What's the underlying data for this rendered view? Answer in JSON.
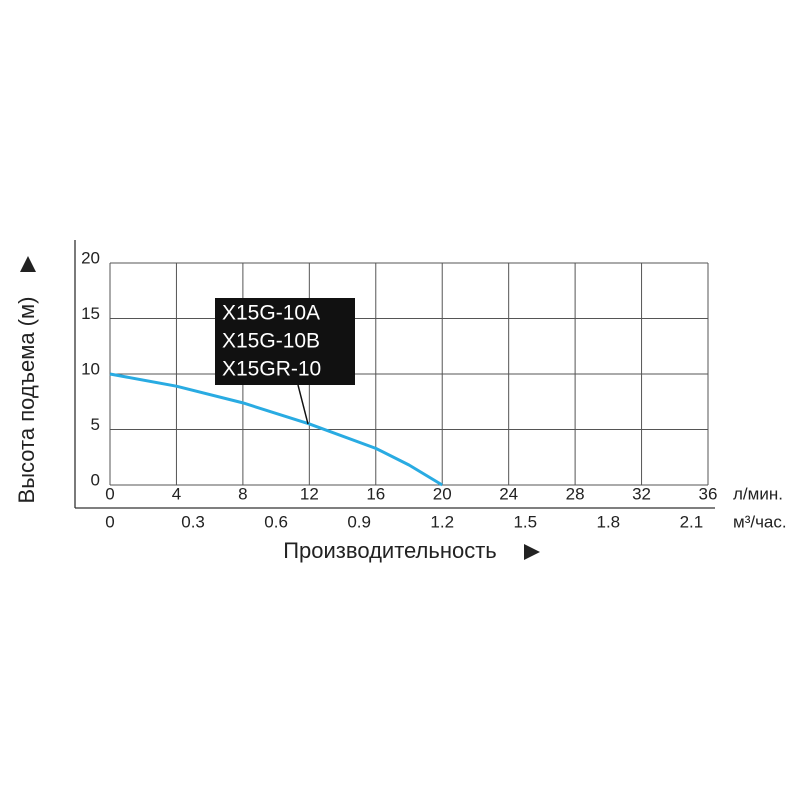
{
  "chart_data": {
    "type": "line",
    "x": [
      0,
      4,
      8,
      12,
      16,
      18,
      20
    ],
    "series": [
      {
        "name": "X15G-10A",
        "color": "#29abe2",
        "values": [
          10,
          8.9,
          7.4,
          5.5,
          3.3,
          1.8,
          0
        ]
      }
    ],
    "annotation": [
      "X15G-10A",
      "X15G-10B",
      "X15GR-10"
    ],
    "xlim": [
      0,
      36
    ],
    "xticks": [
      0,
      4,
      8,
      12,
      16,
      20,
      24,
      28,
      32,
      36
    ],
    "x_unit": "л/мин.",
    "x2lim": [
      0,
      2.16
    ],
    "x2ticks": [
      0,
      0.3,
      0.6,
      0.9,
      1.2,
      1.5,
      1.8,
      2.1
    ],
    "x2_unit": "м³/час.",
    "ylim": [
      0,
      20
    ],
    "yticks": [
      0,
      5,
      10,
      15,
      20
    ],
    "x_label": "Производительность",
    "y_label": "Высота подъема (м)",
    "grid": true
  }
}
